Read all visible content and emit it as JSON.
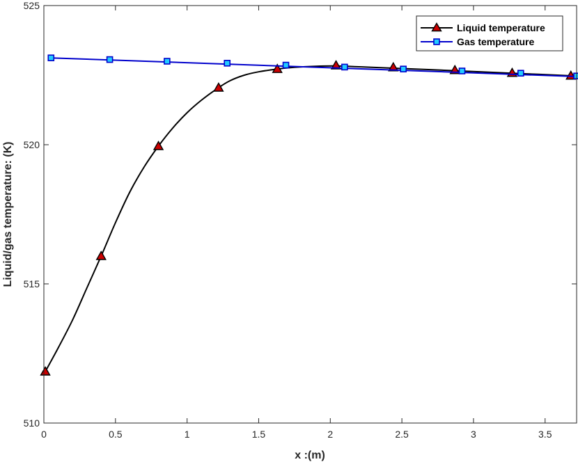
{
  "chart_data": {
    "type": "line",
    "xlabel": "x :(m)",
    "ylabel": "Liquid/gas temperature: (K)",
    "xlim": [
      0,
      3.72
    ],
    "ylim": [
      510,
      525
    ],
    "xticks": [
      "0",
      "0.5",
      "1",
      "1.5",
      "2",
      "2.5",
      "3",
      "3.5"
    ],
    "xtick_values": [
      0,
      0.5,
      1,
      1.5,
      2,
      2.5,
      3,
      3.5
    ],
    "yticks": [
      "510",
      "515",
      "520",
      "525"
    ],
    "ytick_values": [
      510,
      515,
      520,
      525
    ],
    "grid": false,
    "legend_position": "top-right",
    "series": [
      {
        "name": "Liquid temperature",
        "color": "#000000",
        "marker_color": "#cc0000",
        "marker": "triangle",
        "curve": [
          [
            0.01,
            511.85
          ],
          [
            0.1,
            512.7
          ],
          [
            0.2,
            513.7
          ],
          [
            0.3,
            514.85
          ],
          [
            0.4,
            516.0
          ],
          [
            0.5,
            517.2
          ],
          [
            0.6,
            518.3
          ],
          [
            0.7,
            519.2
          ],
          [
            0.8,
            519.95
          ],
          [
            0.9,
            520.6
          ],
          [
            1.0,
            521.15
          ],
          [
            1.1,
            521.6
          ],
          [
            1.22,
            522.05
          ],
          [
            1.3,
            522.3
          ],
          [
            1.4,
            522.5
          ],
          [
            1.5,
            522.62
          ],
          [
            1.63,
            522.72
          ],
          [
            1.75,
            522.78
          ],
          [
            1.9,
            522.82
          ],
          [
            2.04,
            522.83
          ],
          [
            2.2,
            522.8
          ],
          [
            2.44,
            522.75
          ],
          [
            2.87,
            522.66
          ],
          [
            3.27,
            522.57
          ],
          [
            3.72,
            522.47
          ]
        ],
        "markers": [
          [
            0.01,
            511.85
          ],
          [
            0.4,
            516.0
          ],
          [
            0.8,
            519.95
          ],
          [
            1.22,
            522.05
          ],
          [
            1.63,
            522.72
          ],
          [
            2.04,
            522.85
          ],
          [
            2.44,
            522.78
          ],
          [
            2.87,
            522.68
          ],
          [
            3.27,
            522.58
          ],
          [
            3.68,
            522.48
          ]
        ]
      },
      {
        "name": "Gas temperature",
        "color": "#0000cc",
        "marker_color": "#22ccff",
        "marker": "square",
        "curve": [
          [
            0.05,
            523.12
          ],
          [
            3.72,
            522.45
          ]
        ],
        "markers": [
          [
            0.05,
            523.12
          ],
          [
            0.46,
            523.06
          ],
          [
            0.86,
            523.0
          ],
          [
            1.28,
            522.93
          ],
          [
            1.69,
            522.86
          ],
          [
            2.1,
            522.79
          ],
          [
            2.51,
            522.72
          ],
          [
            2.92,
            522.65
          ],
          [
            3.33,
            522.57
          ],
          [
            3.72,
            522.47
          ]
        ]
      }
    ]
  }
}
